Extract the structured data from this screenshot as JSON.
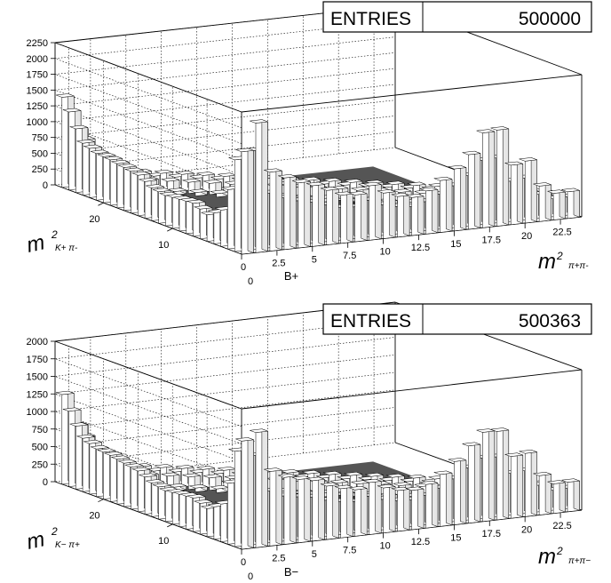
{
  "chart_data": [
    {
      "type": "lego3d",
      "entries_label": "ENTRIES",
      "entries_value": "500000",
      "z_ticks": [
        "0",
        "250",
        "500",
        "750",
        "1000",
        "1250",
        "1500",
        "1750",
        "2000",
        "2250"
      ],
      "zlim": [
        0,
        2250
      ],
      "x_ticks": [
        "0",
        "2.5",
        "5",
        "7.5",
        "10",
        "12.5",
        "15",
        "17.5",
        "20",
        "22.5"
      ],
      "x_extra_tick": "0",
      "xlim": [
        0,
        24
      ],
      "xlabel": "B+",
      "xaxis_title": {
        "base": "m",
        "sup": "2",
        "sub": "π+π-"
      },
      "y_ticks": [
        "10",
        "20"
      ],
      "ylim": [
        0,
        27
      ],
      "yaxis_title": {
        "base": "m",
        "sup": "2",
        "sub": "K+ π-"
      },
      "grid": true,
      "front_row_profile": {
        "x": [
          0.5,
          1.5,
          2.5,
          3.5,
          4.5,
          5.5,
          6.5,
          7.5,
          8.5,
          9.5,
          10.5,
          11.5,
          12.5,
          13.5,
          14.5,
          15.5,
          16.5,
          17.5,
          18.5,
          19.5,
          20.5,
          21.5,
          22.5
        ],
        "z": [
          520,
          1500,
          1180,
          1130,
          1030,
          960,
          860,
          760,
          740,
          860,
          720,
          640,
          600,
          680,
          820,
          980,
          1180,
          1500,
          1520,
          940,
          980,
          560,
          420
        ]
      },
      "left_row_profile": {
        "y": [
          1.5,
          3.5,
          5.5,
          7.5,
          9.5,
          11.5,
          13.5,
          15.5,
          17.5,
          19.5,
          21.5,
          23.5,
          25.5,
          26.5
        ],
        "z": [
          1100,
          560,
          420,
          520,
          500,
          480,
          520,
          640,
          680,
          720,
          740,
          820,
          1180,
          1250
        ]
      }
    },
    {
      "type": "lego3d",
      "entries_label": "ENTRIES",
      "entries_value": "500363",
      "z_ticks": [
        "0",
        "250",
        "500",
        "750",
        "1000",
        "1250",
        "1500",
        "1750",
        "2000"
      ],
      "zlim": [
        0,
        2000
      ],
      "x_ticks": [
        "0",
        "2.5",
        "5",
        "7.5",
        "10",
        "12.5",
        "15",
        "17.5",
        "20",
        "22.5"
      ],
      "x_extra_tick": "0",
      "xlim": [
        0,
        24
      ],
      "xlabel": "B−",
      "xaxis_title": {
        "base": "m",
        "sup": "2",
        "sub": "π+π−"
      },
      "y_ticks": [
        "10",
        "20"
      ],
      "ylim": [
        0,
        27
      ],
      "yaxis_title": {
        "base": "m",
        "sup": "2",
        "sub": "K− π+"
      },
      "grid": true,
      "front_row_profile": {
        "x": [
          0.5,
          1.5,
          2.5,
          3.5,
          4.5,
          5.5,
          6.5,
          7.5,
          8.5,
          9.5,
          10.5,
          11.5,
          12.5,
          13.5,
          14.5,
          15.5,
          16.5,
          17.5,
          18.5,
          19.5,
          20.5,
          21.5,
          22.5
        ],
        "z": [
          560,
          1150,
          1000,
          950,
          900,
          860,
          760,
          700,
          660,
          740,
          640,
          580,
          560,
          620,
          740,
          900,
          1100,
          1270,
          1260,
          880,
          900,
          560,
          420
        ]
      },
      "left_row_profile": {
        "y": [
          1.5,
          3.5,
          5.5,
          7.5,
          9.5,
          11.5,
          13.5,
          15.5,
          17.5,
          19.5,
          21.5,
          23.5,
          25.5,
          26.5
        ],
        "z": [
          980,
          520,
          400,
          480,
          460,
          440,
          480,
          580,
          620,
          660,
          680,
          760,
          1020,
          1100
        ]
      }
    }
  ]
}
